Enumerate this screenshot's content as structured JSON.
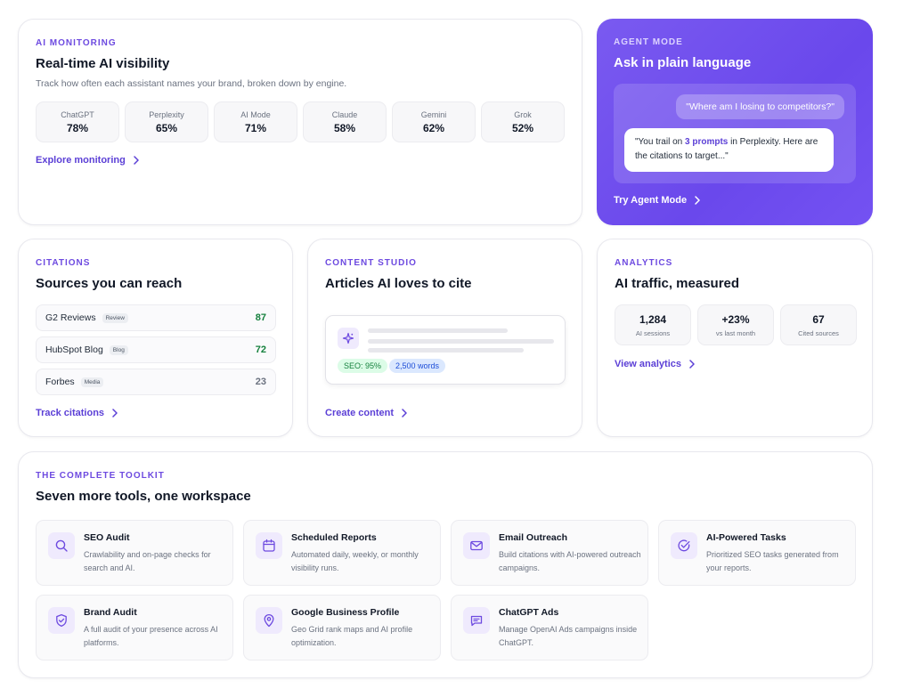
{
  "monitoring": {
    "eyebrow": "AI MONITORING",
    "title": "Real-time AI visibility",
    "description": "Track how often each assistant names your brand, broken down by engine.",
    "engines": [
      {
        "name": "ChatGPT",
        "value": "78%"
      },
      {
        "name": "Perplexity",
        "value": "65%"
      },
      {
        "name": "AI Mode",
        "value": "71%"
      },
      {
        "name": "Claude",
        "value": "58%"
      },
      {
        "name": "Gemini",
        "value": "62%"
      },
      {
        "name": "Grok",
        "value": "52%"
      }
    ],
    "link": "Explore monitoring"
  },
  "agent": {
    "eyebrow": "AGENT MODE",
    "title": "Ask in plain language",
    "user_message": "\"Where am I losing to competitors?\"",
    "reply_before": "\"You trail on ",
    "reply_highlight": "3 prompts",
    "reply_after": " in Perplexity. Here are the citations to target...\"",
    "link": "Try Agent Mode"
  },
  "citations": {
    "eyebrow": "CITATIONS",
    "title": "Sources you can reach",
    "rows": [
      {
        "name": "G2 Reviews",
        "tag": "Review",
        "score": "87",
        "color": "#15803d"
      },
      {
        "name": "HubSpot Blog",
        "tag": "Blog",
        "score": "72",
        "color": "#15803d"
      },
      {
        "name": "Forbes",
        "tag": "Media",
        "score": "23",
        "color": "#6b7280"
      }
    ],
    "link": "Track citations"
  },
  "content": {
    "eyebrow": "CONTENT STUDIO",
    "title": "Articles AI loves to cite",
    "seo_pill": "SEO: 95%",
    "words_pill": "2,500 words",
    "icon": "sparkle-icon",
    "link": "Create content"
  },
  "analytics": {
    "eyebrow": "ANALYTICS",
    "title": "AI traffic, measured",
    "stats": [
      {
        "value": "1,284",
        "label": "AI sessions"
      },
      {
        "value": "+23%",
        "label": "vs last month"
      },
      {
        "value": "67",
        "label": "Cited sources"
      }
    ],
    "link": "View analytics"
  },
  "toolkit": {
    "eyebrow": "THE COMPLETE TOOLKIT",
    "title": "Seven more tools, one workspace",
    "tools": [
      {
        "title": "SEO Audit",
        "desc": "Crawlability and on-page checks for search and AI.",
        "icon": "search-icon"
      },
      {
        "title": "Scheduled Reports",
        "desc": "Automated daily, weekly, or monthly visibility runs.",
        "icon": "calendar-icon"
      },
      {
        "title": "Email Outreach",
        "desc": "Build citations with AI-powered outreach campaigns.",
        "icon": "mail-icon"
      },
      {
        "title": "AI-Powered Tasks",
        "desc": "Prioritized SEO tasks generated from your reports.",
        "icon": "check-circle-icon"
      },
      {
        "title": "Brand Audit",
        "desc": "A full audit of your presence across AI platforms.",
        "icon": "shield-check-icon"
      },
      {
        "title": "Google Business Profile",
        "desc": "Geo Grid rank maps and AI profile optimization.",
        "icon": "map-pin-icon"
      },
      {
        "title": "ChatGPT Ads",
        "desc": "Manage OpenAI Ads campaigns inside ChatGPT.",
        "icon": "message-icon"
      }
    ]
  },
  "colors": {
    "accent": "#6d4ae0",
    "agent_gradient": "#7a5af0",
    "positive": "#15803d"
  }
}
